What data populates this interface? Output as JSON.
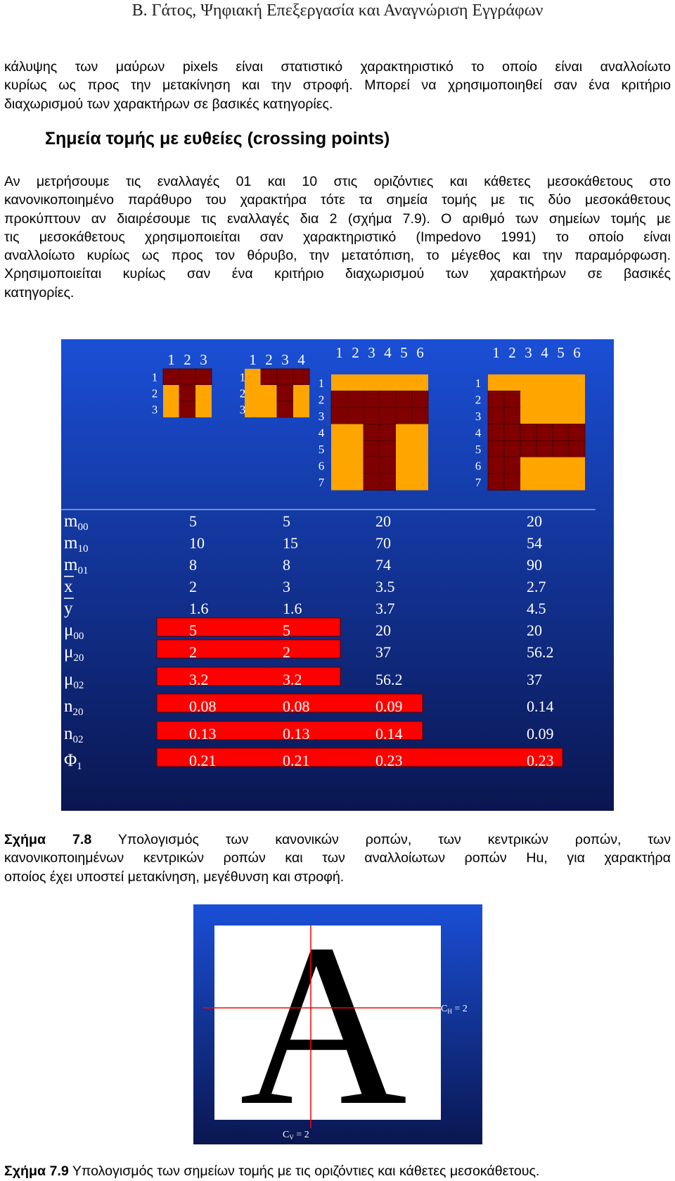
{
  "header": {
    "title": "Β. Γάτος, Ψηφιακή Επεξεργασία και Αναγνώριση Εγγράφων"
  },
  "paragraphs": {
    "intro_lines": [
      "κάλυψης των μαύρων pixels είναι στατιστικό χαρακτηριστικό το οποίο είναι αναλλοίωτο",
      "κυρίως ως προς την μετακίνηση και την στροφή. Μπορεί να χρησιμοποιηθεί σαν ένα κριτήριο",
      "διαχωρισμού των χαρακτήρων σε βασικές κατηγορίες."
    ],
    "section_heading": "Σημεία τομής με ευθείες (crossing points)",
    "crossing_lines": [
      "Αν μετρήσουμε τις εναλλαγές 01 και 10 στις οριζόντιες και κάθετες μεσοκάθετους στο",
      "κανονικοποιημένο παράθυρο του χαρακτήρα τότε τα σημεία τομής με τις δύο μεσοκάθετους",
      "προκύπτουν αν διαιρέσουμε τις εναλλαγές δια 2 (σχήμα 7.9). Ο αριθμό των σημείων τομής με",
      "τις μεσοκάθετους χρησιμοποιείται σαν χαρακτηριστικό (Impedovo 1991) το οποίο είναι",
      "αναλλοίωτο κυρίως ως προς τον θόρυβο, την μετατόπιση, το μέγεθος και την παραμόρφωση.",
      "Χρησιμοποιείται κυρίως σαν ένα κριτήριο διαχωρισμού των χαρακτήρων σε βασικές",
      "κατηγορίες."
    ]
  },
  "figure_7_8": {
    "colors": {
      "background_top": "#1a4fd6",
      "background_bottom": "#0a1650",
      "fill": "#ffa500",
      "ink": "#800000",
      "highlight": "#ff0000",
      "text": "#ffffff"
    },
    "grids": [
      {
        "col_labels": [
          "1",
          "2",
          "3"
        ],
        "row_labels": [
          "1",
          "2",
          "3"
        ],
        "cells": [
          "111",
          "010",
          "010"
        ]
      },
      {
        "col_labels": [
          "1",
          "2",
          "3",
          "4"
        ],
        "row_labels": [
          "1",
          "2",
          "3"
        ],
        "cells": [
          "0111",
          "0010",
          "0010"
        ]
      },
      {
        "col_labels": [
          "1",
          "2",
          "3",
          "4",
          "5",
          "6"
        ],
        "row_labels": [
          "1",
          "2",
          "3",
          "4",
          "5",
          "6",
          "7"
        ],
        "cells": [
          "000000",
          "111111",
          "111111",
          "001100",
          "001100",
          "001100",
          "001100"
        ]
      },
      {
        "col_labels": [
          "1",
          "2",
          "3",
          "4",
          "5",
          "6"
        ],
        "row_labels": [
          "1",
          "2",
          "3",
          "4",
          "5",
          "6",
          "7"
        ],
        "cells": [
          "000000",
          "110000",
          "110000",
          "111111",
          "111111",
          "110000",
          "110000"
        ]
      }
    ],
    "table": {
      "rows": [
        {
          "sym": "m",
          "sub": "00",
          "bar": false,
          "values": [
            "5",
            "5",
            "20",
            "20"
          ],
          "highlight": 0
        },
        {
          "sym": "m",
          "sub": "10",
          "bar": false,
          "values": [
            "10",
            "15",
            "70",
            "54"
          ],
          "highlight": 0
        },
        {
          "sym": "m",
          "sub": "01",
          "bar": false,
          "values": [
            "8",
            "8",
            "74",
            "90"
          ],
          "highlight": 0
        },
        {
          "sym": "x",
          "sub": "",
          "bar": true,
          "values": [
            "2",
            "3",
            "3.5",
            "2.7"
          ],
          "highlight": 0
        },
        {
          "sym": "y",
          "sub": "",
          "bar": true,
          "values": [
            "1.6",
            "1.6",
            "3.7",
            "4.5"
          ],
          "highlight": 0
        },
        {
          "sym": "μ",
          "sub": "00",
          "bar": false,
          "values": [
            "5",
            "5",
            "20",
            "20"
          ],
          "highlight": 2
        },
        {
          "sym": "μ",
          "sub": "20",
          "bar": false,
          "values": [
            "2",
            "2",
            "37",
            "56.2"
          ],
          "highlight": 2
        },
        {
          "sym": "μ",
          "sub": "02",
          "bar": false,
          "values": [
            "3.2",
            "3.2",
            "56.2",
            "37"
          ],
          "highlight": 2
        },
        {
          "sym": "n",
          "sub": "20",
          "bar": false,
          "values": [
            "0.08",
            "0.08",
            "0.09",
            "0.14"
          ],
          "highlight": 3
        },
        {
          "sym": "n",
          "sub": "02",
          "bar": false,
          "values": [
            "0.13",
            "0.13",
            "0.14",
            "0.09"
          ],
          "highlight": 3
        },
        {
          "sym": "Φ",
          "sub": "1",
          "bar": false,
          "values": [
            "0.21",
            "0.21",
            "0.23",
            "0.23"
          ],
          "highlight": 4
        }
      ]
    },
    "caption_label": "Σχήμα 7.8",
    "caption_lines": [
      "Υπολογισμός των κανονικών ροπών, των κεντρικών ροπών, των",
      "κανονικοποιημένων κεντρικών ροπών και των αναλλοίωτων ροπών Hu, για χαρακτήρα",
      "οποίος έχει υποστεί μετακίνηση, μεγέθυνση και στροφή."
    ]
  },
  "figure_7_9": {
    "colors": {
      "background_top": "#1a4fd6",
      "background_bottom": "#0a1650",
      "panel": "#ffffff",
      "glyph": "#000000",
      "line": "#ff0000",
      "text": "#ffffff"
    },
    "glyph": "A",
    "ch_label": {
      "main": "C",
      "sub": "H",
      "rest": " = 2"
    },
    "cv_label": {
      "main": "C",
      "sub": "V",
      "rest": " = 2"
    },
    "caption_label": "Σχήμα 7.9",
    "caption_text": "Υπολογισμός των σημείων τομής με τις οριζόντιες και κάθετες μεσοκάθετους."
  }
}
